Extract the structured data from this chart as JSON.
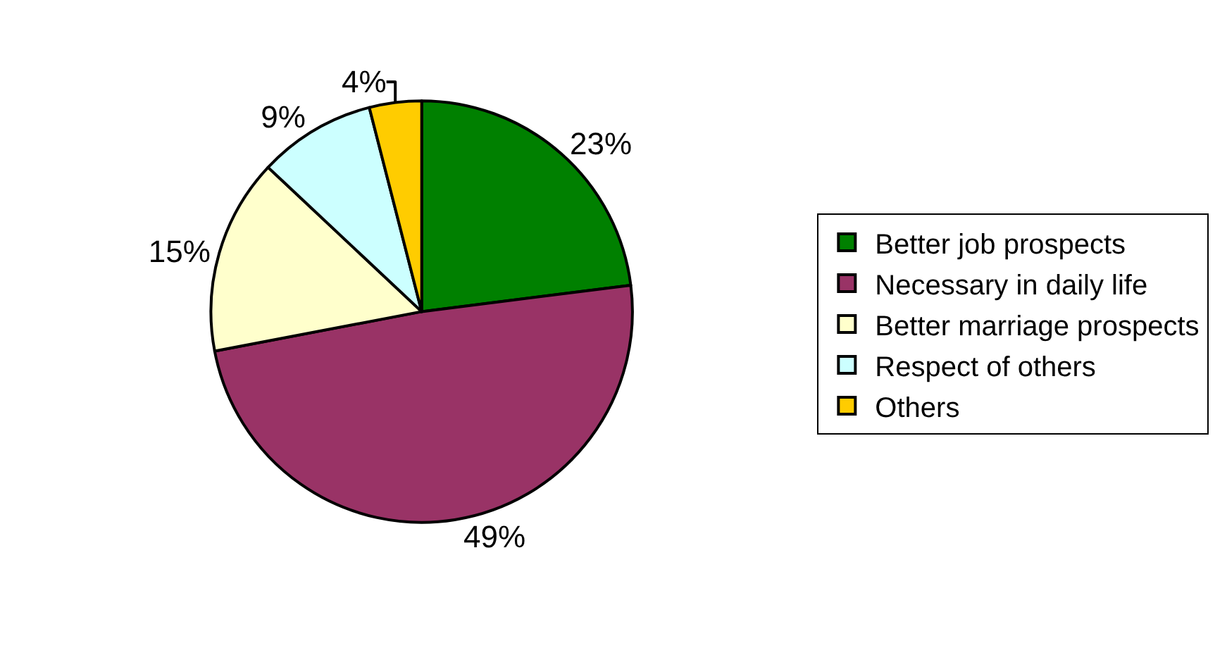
{
  "chart_data": {
    "type": "pie",
    "categories": [
      "Better job prospects",
      "Necessary in daily life",
      "Better marriage prospects",
      "Respect of others",
      "Others"
    ],
    "values": [
      23,
      49,
      15,
      9,
      4
    ],
    "colors": [
      "#008000",
      "#993366",
      "#ffffcc",
      "#ccffff",
      "#ffcc00"
    ],
    "value_labels": [
      "23%",
      "49%",
      "15%",
      "9%",
      "4%"
    ],
    "legend": "right"
  }
}
